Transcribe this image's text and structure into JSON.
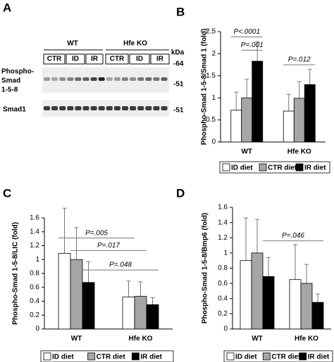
{
  "blot": {
    "letter": "A",
    "groups": [
      "WT",
      "Hfe KO"
    ],
    "lanes": [
      "CTR",
      "ID",
      "IR",
      "CTR",
      "ID",
      "IR"
    ],
    "unit": "kDa",
    "phospho_label": [
      "Phospho-",
      "Smad",
      "1-5-8"
    ],
    "phospho_markers": [
      "-64",
      "-51"
    ],
    "smad_label": "Smad1",
    "smad_marker": "-51"
  },
  "chart_data": [
    {
      "type": "bar",
      "letter": "B",
      "y_label": "Phospho-Smad 1-5-8/Smad 1 (fold)",
      "categories": [
        "WT",
        "Hfe KO"
      ],
      "series": [
        {
          "name": "ID diet",
          "color": "#ffffff",
          "values": [
            0.72,
            0.7
          ],
          "errors": [
            0.41,
            0.38
          ]
        },
        {
          "name": "CTR diet",
          "color": "#a6a6a6",
          "values": [
            1.0,
            0.99
          ],
          "errors": [
            0.42,
            0.38
          ]
        },
        {
          "name": "IR diet",
          "color": "#000000",
          "values": [
            1.83,
            1.3
          ],
          "errors": [
            0.44,
            0.35
          ]
        }
      ],
      "ylim": [
        0,
        2.5
      ],
      "yticks": [
        0,
        0.5,
        1,
        1.5,
        2,
        2.5
      ],
      "annotations": [
        "P<.0001",
        "P=.001",
        "P=.012"
      ]
    },
    {
      "type": "bar",
      "letter": "C",
      "y_label": "Phospho-Smad 1-5-8/LIC (fold)",
      "categories": [
        "WT",
        "Hfe KO"
      ],
      "series": [
        {
          "name": "ID diet",
          "color": "#ffffff",
          "values": [
            1.09,
            0.46
          ],
          "errors": [
            0.65,
            0.23
          ]
        },
        {
          "name": "CTR diet",
          "color": "#a6a6a6",
          "values": [
            1.0,
            0.47
          ],
          "errors": [
            0.46,
            0.21
          ]
        },
        {
          "name": "IR diet",
          "color": "#000000",
          "values": [
            0.67,
            0.35
          ],
          "errors": [
            0.3,
            0.1
          ]
        }
      ],
      "ylim": [
        0,
        1.6
      ],
      "yticks": [
        0,
        0.2,
        0.4,
        0.6,
        0.8,
        1,
        1.2,
        1.4,
        1.6
      ],
      "annotations": [
        "P=.005",
        "P=.017",
        "P=.048"
      ]
    },
    {
      "type": "bar",
      "letter": "D",
      "y_label": "Phospho-Smad 1-5-8/Bmp6 (fold)",
      "categories": [
        "WT",
        "Hfe KO"
      ],
      "series": [
        {
          "name": "ID diet",
          "color": "#ffffff",
          "values": [
            0.9,
            0.65
          ],
          "errors": [
            0.56,
            0.46
          ]
        },
        {
          "name": "CTR diet",
          "color": "#a6a6a6",
          "values": [
            1.0,
            0.6
          ],
          "errors": [
            0.44,
            0.25
          ]
        },
        {
          "name": "IR diet",
          "color": "#000000",
          "values": [
            0.69,
            0.35
          ],
          "errors": [
            0.25,
            0.11
          ]
        }
      ],
      "ylim": [
        0,
        1.6
      ],
      "yticks": [
        0,
        0.2,
        0.4,
        0.6,
        0.8,
        1,
        1.2,
        1.4,
        1.6
      ],
      "annotations": [
        "P=.046"
      ]
    }
  ]
}
